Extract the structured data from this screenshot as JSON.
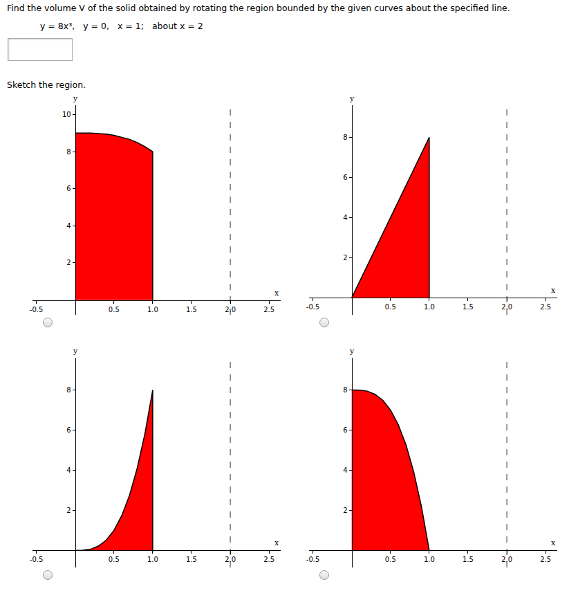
{
  "question": "Find the volume V of the solid obtained by rotating the region bounded by the given curves about the specified line.",
  "equation_line": [
    "y = 8x³,",
    "y = 0,",
    "x = 1;",
    "about x = 2"
  ],
  "instruction": "Sketch the region.",
  "chart_data": [
    {
      "type": "area",
      "color": "#ff0000",
      "xlabel": "x",
      "ylabel": "y",
      "x": [
        0,
        0.1,
        0.2,
        0.3,
        0.4,
        0.5,
        0.6,
        0.7,
        0.8,
        0.9,
        1,
        1
      ],
      "values": [
        9,
        9,
        9,
        8.97,
        8.94,
        8.88,
        8.78,
        8.66,
        8.49,
        8.27,
        8,
        0
      ],
      "rotation_axis_x": 2,
      "xlim": [
        -0.55,
        2.65
      ],
      "ylim": [
        -0.8,
        10.5
      ],
      "xticks": [
        -0.5,
        0.5,
        {
          "value": 1,
          "label": "1.0"
        },
        1.5,
        {
          "value": 2,
          "label": "2.0"
        },
        2.5
      ],
      "yticks": [
        2,
        4,
        6,
        8,
        10
      ],
      "grid": false
    },
    {
      "type": "area",
      "color": "#ff0000",
      "xlabel": "x",
      "ylabel": "y",
      "x": [
        0,
        1,
        1
      ],
      "values": [
        0,
        8,
        0
      ],
      "rotation_axis_x": 2,
      "xlim": [
        -0.55,
        2.65
      ],
      "ylim": [
        -0.85,
        9.6
      ],
      "xticks": [
        -0.5,
        0.5,
        {
          "value": 1,
          "label": "1.0"
        },
        1.5,
        {
          "value": 2,
          "label": "2.0"
        },
        2.5
      ],
      "yticks": [
        2,
        4,
        6,
        8
      ],
      "grid": false
    },
    {
      "type": "area",
      "color": "#ff0000",
      "xlabel": "x",
      "ylabel": "y",
      "x": [
        0,
        0.1,
        0.2,
        0.3,
        0.4,
        0.5,
        0.6,
        0.7,
        0.8,
        0.9,
        1,
        1
      ],
      "values": [
        0,
        0.01,
        0.06,
        0.22,
        0.51,
        1,
        1.73,
        2.74,
        4.1,
        5.83,
        8,
        0
      ],
      "rotation_axis_x": 2,
      "xlim": [
        -0.55,
        2.65
      ],
      "ylim": [
        -0.85,
        9.6
      ],
      "xticks": [
        -0.5,
        0.5,
        {
          "value": 1,
          "label": "1.0"
        },
        1.5,
        {
          "value": 2,
          "label": "2.0"
        },
        2.5
      ],
      "yticks": [
        2,
        4,
        6,
        8
      ],
      "grid": false
    },
    {
      "type": "area",
      "color": "#ff0000",
      "xlabel": "x",
      "ylabel": "y",
      "x": [
        0,
        0.1,
        0.2,
        0.3,
        0.4,
        0.5,
        0.6,
        0.7,
        0.8,
        0.9,
        1
      ],
      "values": [
        8,
        7.99,
        7.94,
        7.78,
        7.49,
        7,
        6.27,
        5.26,
        3.9,
        2.17,
        0
      ],
      "rotation_axis_x": 2,
      "xlim": [
        -0.55,
        2.65
      ],
      "ylim": [
        -0.85,
        9.6
      ],
      "xticks": [
        -0.5,
        0.5,
        {
          "value": 1,
          "label": "1.0"
        },
        1.5,
        {
          "value": 2,
          "label": "2.0"
        },
        2.5
      ],
      "yticks": [
        2,
        4,
        6,
        8
      ],
      "grid": false
    }
  ]
}
